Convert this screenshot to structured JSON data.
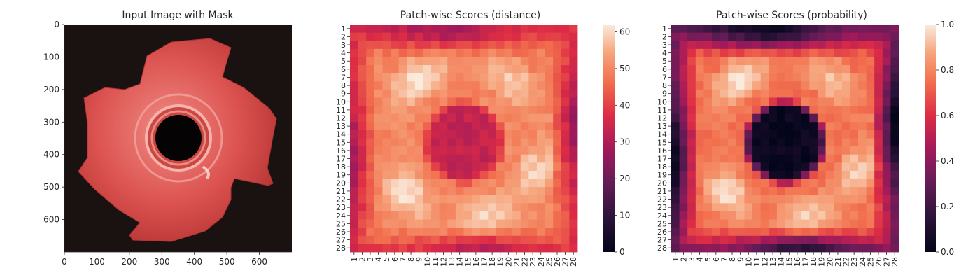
{
  "panels": [
    {
      "title": "Input Image with Mask",
      "xticks": [
        "0",
        "100",
        "200",
        "300",
        "400",
        "500",
        "600"
      ],
      "yticks": [
        "0",
        "100",
        "200",
        "300",
        "400",
        "500",
        "600"
      ]
    },
    {
      "title": "Patch-wise Scores (distance)",
      "colorbar": {
        "colormap": "rocket",
        "min": 0,
        "max": 62,
        "ticks": [
          "0",
          "10",
          "20",
          "30",
          "40",
          "50",
          "60"
        ]
      }
    },
    {
      "title": "Patch-wise Scores (probability)",
      "colorbar": {
        "colormap": "rocket",
        "min": 0,
        "max": 1,
        "ticks": [
          "0.0",
          "0.2",
          "0.4",
          "0.6",
          "0.8",
          "1.0"
        ]
      }
    }
  ],
  "chart_data": [
    {
      "type": "image",
      "title": "Input Image with Mask",
      "xlim": [
        0,
        700
      ],
      "ylim": [
        700,
        0
      ],
      "xticks": [
        0,
        100,
        200,
        300,
        400,
        500,
        600
      ],
      "yticks": [
        0,
        100,
        200,
        300,
        400,
        500,
        600
      ],
      "background_color": "#1a1210",
      "object_color": "#d9534f"
    },
    {
      "type": "heatmap",
      "title": "Patch-wise Scores (distance)",
      "rows": 28,
      "cols": 28,
      "row_labels": [
        "1",
        "2",
        "3",
        "4",
        "5",
        "6",
        "7",
        "8",
        "9",
        "10",
        "11",
        "12",
        "13",
        "14",
        "15",
        "16",
        "17",
        "18",
        "19",
        "20",
        "21",
        "22",
        "23",
        "24",
        "25",
        "26",
        "27",
        "28"
      ],
      "col_labels": [
        "1",
        "2",
        "3",
        "4",
        "5",
        "6",
        "7",
        "8",
        "9",
        "10",
        "11",
        "12",
        "13",
        "14",
        "15",
        "16",
        "17",
        "18",
        "19",
        "20",
        "21",
        "22",
        "23",
        "24",
        "25",
        "26",
        "27",
        "28"
      ],
      "value_range": [
        0,
        62
      ],
      "pattern": "ring",
      "outer_value": 28,
      "ring_value": 50,
      "center_value": 33,
      "hotspot_value": 62
    },
    {
      "type": "heatmap",
      "title": "Patch-wise Scores (probability)",
      "rows": 28,
      "cols": 28,
      "row_labels": [
        "1",
        "2",
        "3",
        "4",
        "5",
        "6",
        "7",
        "8",
        "9",
        "10",
        "11",
        "12",
        "13",
        "14",
        "15",
        "16",
        "17",
        "18",
        "19",
        "20",
        "21",
        "22",
        "23",
        "24",
        "25",
        "26",
        "27",
        "28"
      ],
      "col_labels": [
        "1",
        "2",
        "3",
        "4",
        "5",
        "6",
        "7",
        "8",
        "9",
        "10",
        "11",
        "12",
        "13",
        "14",
        "15",
        "16",
        "17",
        "18",
        "19",
        "20",
        "21",
        "22",
        "23",
        "24",
        "25",
        "26",
        "27",
        "28"
      ],
      "value_range": [
        0,
        1
      ],
      "pattern": "ring",
      "outer_value": 0.03,
      "ring_value": 0.76,
      "center_value": 0.03,
      "hotspot_value": 1.0
    }
  ]
}
